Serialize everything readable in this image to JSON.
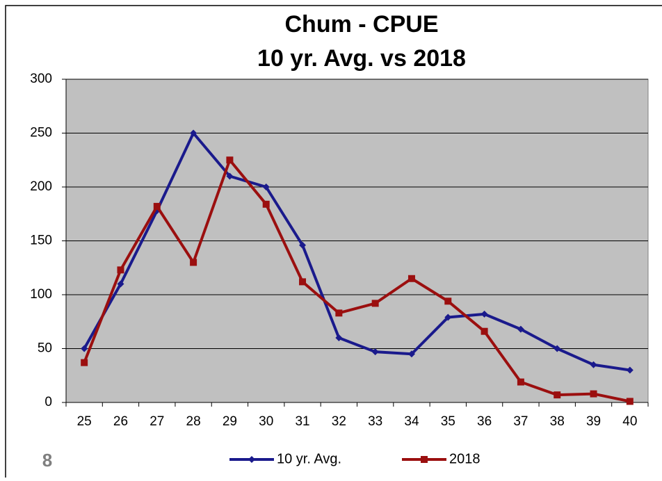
{
  "chart_data": {
    "type": "line",
    "title": "Chum - CPUE",
    "subtitle": "10 yr. Avg. vs 2018",
    "categories": [
      "25",
      "26",
      "27",
      "28",
      "29",
      "30",
      "31",
      "32",
      "33",
      "34",
      "35",
      "36",
      "37",
      "38",
      "39",
      "40"
    ],
    "series": [
      {
        "name": "10 yr. Avg.",
        "color": "#1a1a8c",
        "marker": "diamond",
        "values": [
          50,
          110,
          178,
          250,
          210,
          200,
          146,
          60,
          47,
          45,
          79,
          82,
          68,
          50,
          35,
          30
        ]
      },
      {
        "name": "2018",
        "color": "#9b0f0f",
        "marker": "square",
        "values": [
          37,
          123,
          182,
          130,
          225,
          184,
          112,
          83,
          92,
          115,
          94,
          66,
          19,
          7,
          8,
          1
        ]
      }
    ],
    "ylim": [
      0,
      300
    ],
    "yticks": [
      0,
      50,
      100,
      150,
      200,
      250,
      300
    ],
    "grid": true,
    "plot_background": "#c0c0c0",
    "legend": "bottom"
  },
  "page_number": "8"
}
